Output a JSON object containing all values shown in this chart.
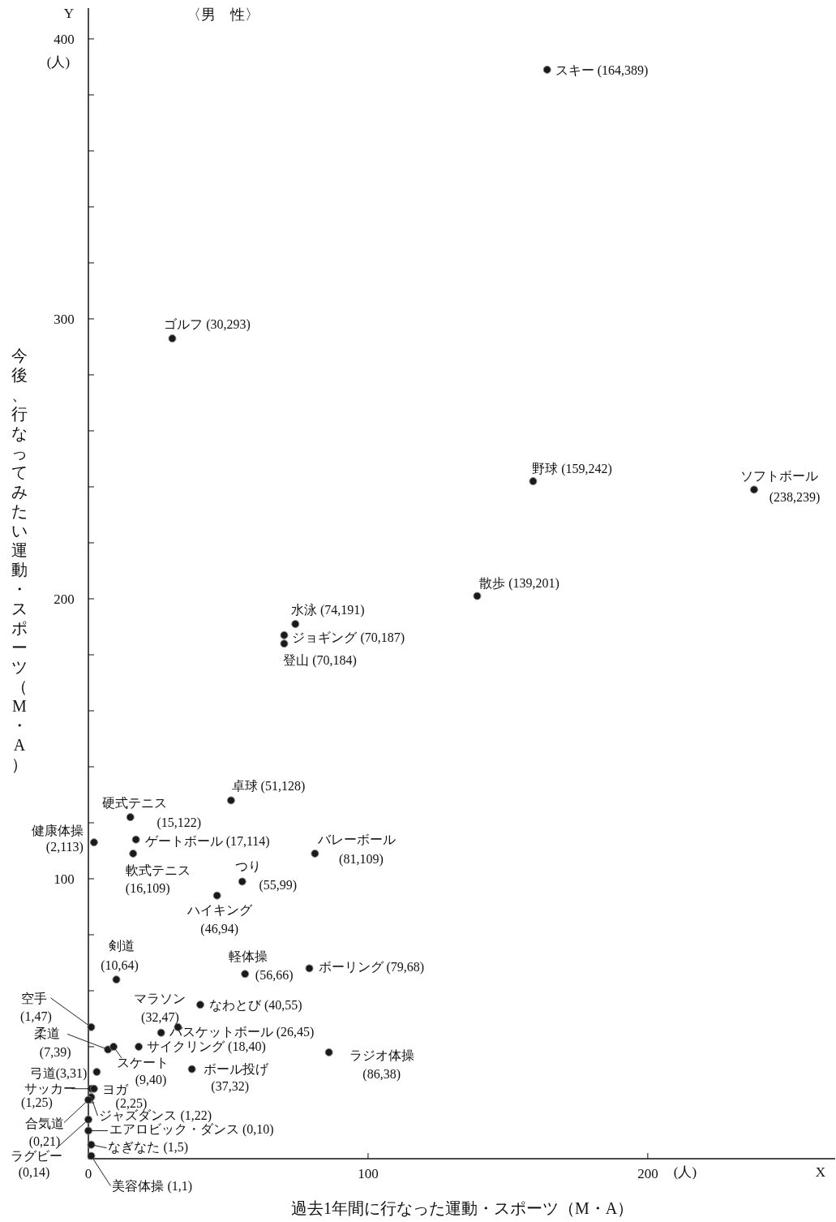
{
  "chart_data": {
    "type": "scatter",
    "title": "〈男　性〉",
    "xlabel": "過去1年間に行なった運動・スポーツ（M・A）",
    "ylabel": "今後、行なってみたい運動・スポーツ（M・A）",
    "annotations": [
      {
        "text": "スキー (164,389)",
        "x": 164,
        "y": 389
      },
      {
        "text": "ゴルフ (30,293)",
        "x": 30,
        "y": 293
      },
      {
        "text": "野球 (159,242)",
        "x": 159,
        "y": 242
      },
      {
        "text": "ソフトボール (238,239)",
        "x": 238,
        "y": 239
      },
      {
        "text": "散歩 (139,201)",
        "x": 139,
        "y": 201
      },
      {
        "text": "水泳 (74,191)",
        "x": 74,
        "y": 191
      },
      {
        "text": "ジョギング (70,187)",
        "x": 70,
        "y": 187
      },
      {
        "text": "登山 (70,184)",
        "x": 70,
        "y": 184
      },
      {
        "text": "卓球 (51,128)",
        "x": 51,
        "y": 128
      },
      {
        "text": "硬式テニス (15,122)",
        "x": 15,
        "y": 122
      },
      {
        "text": "健康体操 (2,113)",
        "x": 2,
        "y": 113
      },
      {
        "text": "ゲートボール (17,114)",
        "x": 17,
        "y": 114
      },
      {
        "text": "バレーボール (81,109)",
        "x": 81,
        "y": 109
      },
      {
        "text": "軟式テニス (16,109)",
        "x": 16,
        "y": 109
      },
      {
        "text": "つり (55,99)",
        "x": 55,
        "y": 99
      },
      {
        "text": "ハイキング (46,94)",
        "x": 46,
        "y": 94
      },
      {
        "text": "剣道 (10,64)",
        "x": 10,
        "y": 64
      },
      {
        "text": "軽体操 (56,66)",
        "x": 56,
        "y": 66
      },
      {
        "text": "ボーリング (79,68)",
        "x": 79,
        "y": 68
      },
      {
        "text": "空手 (1,47)",
        "x": 1,
        "y": 47
      },
      {
        "text": "マラソン (32,47)",
        "x": 32,
        "y": 47
      },
      {
        "text": "なわとび (40,55)",
        "x": 40,
        "y": 55
      },
      {
        "text": "バスケットボール (26,45)",
        "x": 26,
        "y": 45
      },
      {
        "text": "柔道 (7,39)",
        "x": 7,
        "y": 39
      },
      {
        "text": "サイクリング (18,40)",
        "x": 18,
        "y": 40
      },
      {
        "text": "スケート (9,40)",
        "x": 9,
        "y": 40
      },
      {
        "text": "ラジオ体操 (86,38)",
        "x": 86,
        "y": 38
      },
      {
        "text": "弓道(3,31)",
        "x": 3,
        "y": 31
      },
      {
        "text": "ボール投げ (37,32)",
        "x": 37,
        "y": 32
      },
      {
        "text": "サッカー (1,25)",
        "x": 1,
        "y": 25
      },
      {
        "text": "ヨガ (2,25)",
        "x": 2,
        "y": 25
      },
      {
        "text": "ジャズダンス (1,22)",
        "x": 1,
        "y": 22
      },
      {
        "text": "合気道 (0,21)",
        "x": 0,
        "y": 21
      },
      {
        "text": "エアロビック・ダンス (0,10)",
        "x": 0,
        "y": 10
      },
      {
        "text": "ラグビー (0,14)",
        "x": 0,
        "y": 14
      },
      {
        "text": "なぎなた (1,5)",
        "x": 1,
        "y": 5
      },
      {
        "text": "美容体操 (1,1)",
        "x": 1,
        "y": 1
      },
      "Y",
      "(人)",
      "X",
      "(人)"
    ],
    "xlim": [
      0,
      267
    ],
    "ylim": [
      0,
      411
    ],
    "xticks": [
      0,
      100,
      200
    ],
    "yticks": [
      {
        "value": 20,
        "label": null
      },
      {
        "value": 40,
        "label": null
      },
      {
        "value": 60,
        "label": null
      },
      {
        "value": 80,
        "label": null
      },
      100,
      {
        "value": 120,
        "label": null
      },
      {
        "value": 140,
        "label": null
      },
      {
        "value": 160,
        "label": null
      },
      {
        "value": 180,
        "label": null
      },
      200,
      {
        "value": 220,
        "label": null
      },
      {
        "value": 240,
        "label": null
      },
      {
        "value": 260,
        "label": null
      },
      {
        "value": 280,
        "label": null
      },
      300,
      {
        "value": 320,
        "label": null
      },
      {
        "value": 340,
        "label": null
      },
      {
        "value": 360,
        "label": null
      },
      {
        "value": 380,
        "label": null
      },
      400
    ],
    "grid": false,
    "marker": "circle",
    "series": [
      {
        "color": "#1a1a1a",
        "x": [
          164,
          30,
          159,
          238,
          139,
          74,
          70,
          70,
          51,
          15,
          2,
          17,
          81,
          16,
          55,
          46,
          10,
          56,
          79,
          1,
          32,
          40,
          26,
          7,
          18,
          9,
          86,
          3,
          37,
          1,
          2,
          1,
          0,
          0,
          0,
          1,
          1
        ],
        "values": [
          389,
          293,
          242,
          239,
          201,
          191,
          187,
          184,
          128,
          122,
          113,
          114,
          109,
          109,
          99,
          94,
          64,
          66,
          68,
          47,
          47,
          55,
          45,
          39,
          40,
          40,
          38,
          31,
          32,
          25,
          25,
          22,
          21,
          10,
          14,
          5,
          1
        ]
      }
    ]
  }
}
